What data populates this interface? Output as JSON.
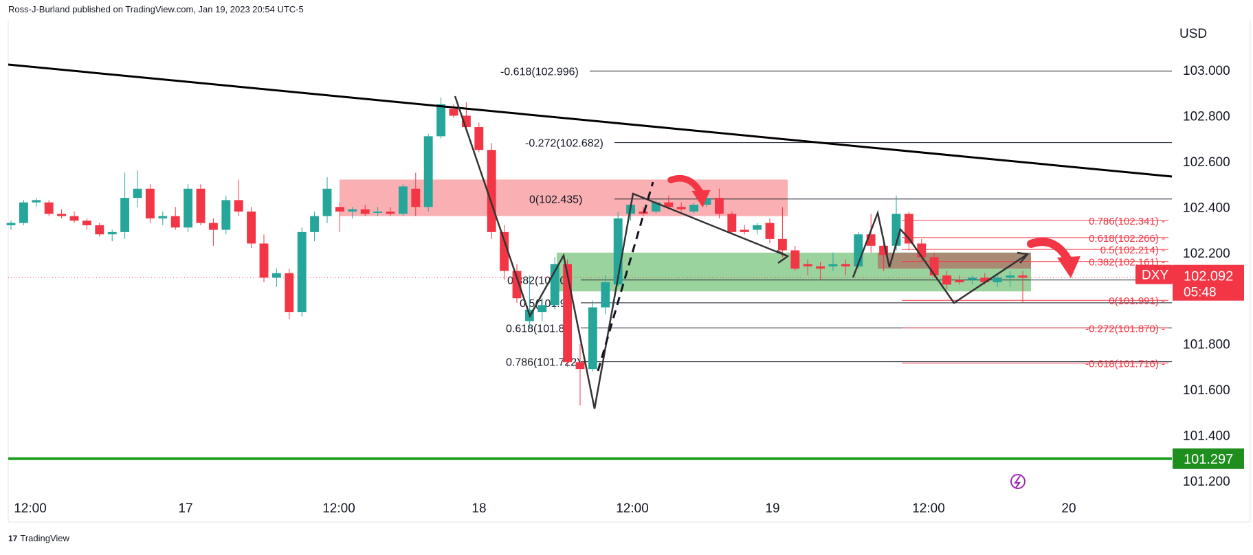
{
  "header": {
    "published": "Ross-J-Burland published on TradingView.com, Jan 19, 2023 20:54 UTC-5"
  },
  "footer": {
    "brand": "TradingView",
    "logo_icon": "tradingview-logo-icon"
  },
  "colors": {
    "up": "#26a69a",
    "down": "#f23645",
    "trend": "#000000",
    "support": "#1e9e1e",
    "red_zone": "#f77c80",
    "green_zone": "#66bb6a"
  },
  "chart_data": {
    "type": "candlestick",
    "symbol": "DXY",
    "ylabel": "USD",
    "ylim": [
      101.15,
      103.1
    ],
    "yticks": [
      "103.000",
      "102.800",
      "102.600",
      "102.400",
      "102.200",
      "101.800",
      "101.600",
      "101.400",
      "101.200"
    ],
    "xticks": [
      "12:00",
      "17",
      "12:00",
      "18",
      "12:00",
      "19",
      "12:00",
      "20"
    ],
    "last_price": {
      "value": "102.092",
      "countdown": "05:48"
    },
    "support_price": "101.297",
    "fib_left": [
      {
        "label": "-0.618(102.996)",
        "price": 102.996
      },
      {
        "label": "-0.272(102.682)",
        "price": 102.682
      },
      {
        "label": "0(102.435)",
        "price": 102.435
      },
      {
        "label": "0.382(102.08",
        "price": 102.08
      },
      {
        "label": "0.5(101.98",
        "price": 101.98
      },
      {
        "label": "0.618(101.87",
        "price": 101.87
      },
      {
        "label": "0.786(101.722)",
        "price": 101.722
      }
    ],
    "fib_right": [
      {
        "label": "0.786(102.341)",
        "price": 102.341
      },
      {
        "label": "0.618(102.266)",
        "price": 102.266
      },
      {
        "label": "0.5(102.214)",
        "price": 102.214
      },
      {
        "label": "0.382(102.161)",
        "price": 102.161
      },
      {
        "label": "0(101.991)",
        "price": 101.991
      },
      {
        "label": "-0.272(101.870)",
        "price": 101.87
      },
      {
        "label": "-0.618(101.716)",
        "price": 101.716
      }
    ],
    "candles": [
      [
        102.32,
        102.34,
        102.3,
        102.33
      ],
      [
        102.33,
        102.43,
        102.32,
        102.42
      ],
      [
        102.42,
        102.44,
        102.4,
        102.43
      ],
      [
        102.42,
        102.43,
        102.36,
        102.37
      ],
      [
        102.37,
        102.39,
        102.35,
        102.36
      ],
      [
        102.36,
        102.38,
        102.33,
        102.34
      ],
      [
        102.34,
        102.35,
        102.3,
        102.32
      ],
      [
        102.32,
        102.33,
        102.27,
        102.28
      ],
      [
        102.28,
        102.3,
        102.25,
        102.29
      ],
      [
        102.29,
        102.55,
        102.26,
        102.44
      ],
      [
        102.44,
        102.56,
        102.4,
        102.48
      ],
      [
        102.48,
        102.5,
        102.33,
        102.35
      ],
      [
        102.35,
        102.38,
        102.32,
        102.36
      ],
      [
        102.36,
        102.4,
        102.3,
        102.31
      ],
      [
        102.31,
        102.5,
        102.29,
        102.48
      ],
      [
        102.48,
        102.5,
        102.32,
        102.33
      ],
      [
        102.33,
        102.35,
        102.23,
        102.3
      ],
      [
        102.3,
        102.45,
        102.28,
        102.43
      ],
      [
        102.43,
        102.52,
        102.36,
        102.38
      ],
      [
        102.38,
        102.4,
        102.22,
        102.24
      ],
      [
        102.24,
        102.28,
        102.07,
        102.09
      ],
      [
        102.09,
        102.13,
        102.05,
        102.11
      ],
      [
        102.11,
        102.13,
        101.91,
        101.94
      ],
      [
        101.94,
        102.31,
        101.92,
        102.29
      ],
      [
        102.29,
        102.38,
        102.25,
        102.36
      ],
      [
        102.36,
        102.53,
        102.33,
        102.48
      ],
      [
        102.4,
        102.42,
        102.29,
        102.38
      ],
      [
        102.38,
        102.4,
        102.35,
        102.39
      ],
      [
        102.39,
        102.41,
        102.36,
        102.37
      ],
      [
        102.38,
        102.4,
        102.36,
        102.38
      ],
      [
        102.38,
        102.4,
        102.36,
        102.37
      ],
      [
        102.37,
        102.5,
        102.36,
        102.49
      ],
      [
        102.48,
        102.55,
        102.36,
        102.4
      ],
      [
        102.4,
        102.72,
        102.38,
        102.71
      ],
      [
        102.71,
        102.88,
        102.7,
        102.85
      ],
      [
        102.83,
        102.85,
        102.79,
        102.8
      ],
      [
        102.8,
        102.86,
        102.73,
        102.75
      ],
      [
        102.75,
        102.77,
        102.64,
        102.65
      ],
      [
        102.65,
        102.68,
        102.26,
        102.29
      ],
      [
        102.29,
        102.32,
        102.08,
        102.12
      ],
      [
        102.12,
        102.15,
        101.98,
        102.0
      ],
      [
        101.9,
        102.1,
        101.87,
        101.95
      ],
      [
        101.94,
        102.0,
        101.9,
        101.97
      ],
      [
        101.97,
        102.18,
        101.95,
        102.15
      ],
      [
        102.15,
        102.17,
        101.7,
        101.72
      ],
      [
        101.72,
        101.8,
        101.53,
        101.69
      ],
      [
        101.69,
        101.99,
        101.68,
        101.96
      ],
      [
        101.96,
        102.1,
        101.93,
        102.07
      ],
      [
        102.06,
        102.38,
        102.05,
        102.35
      ],
      [
        102.37,
        102.42,
        102.34,
        102.41
      ],
      [
        102.38,
        102.4,
        102.36,
        102.37
      ],
      [
        102.38,
        102.43,
        102.37,
        102.42
      ],
      [
        102.42,
        102.45,
        102.39,
        102.4
      ],
      [
        102.4,
        102.42,
        102.38,
        102.39
      ],
      [
        102.38,
        102.42,
        102.37,
        102.41
      ],
      [
        102.41,
        102.46,
        102.4,
        102.44
      ],
      [
        102.44,
        102.48,
        102.35,
        102.37
      ],
      [
        102.37,
        102.38,
        102.28,
        102.29
      ],
      [
        102.3,
        102.32,
        102.28,
        102.29
      ],
      [
        102.3,
        102.33,
        102.28,
        102.32
      ],
      [
        102.33,
        102.35,
        102.24,
        102.26
      ],
      [
        102.26,
        102.4,
        102.18,
        102.21
      ],
      [
        102.21,
        102.23,
        102.12,
        102.13
      ],
      [
        102.15,
        102.17,
        102.1,
        102.14
      ],
      [
        102.14,
        102.16,
        102.08,
        102.13
      ],
      [
        102.14,
        102.2,
        102.12,
        102.15
      ],
      [
        102.15,
        102.17,
        102.1,
        102.14
      ],
      [
        102.14,
        102.29,
        102.13,
        102.28
      ],
      [
        102.28,
        102.37,
        102.2,
        102.23
      ],
      [
        102.23,
        102.26,
        102.12,
        102.19
      ],
      [
        102.23,
        102.45,
        102.21,
        102.37
      ],
      [
        102.37,
        102.38,
        102.21,
        102.24
      ],
      [
        102.24,
        102.26,
        102.16,
        102.18
      ],
      [
        102.18,
        102.2,
        102.09,
        102.1
      ],
      [
        102.1,
        102.12,
        102.04,
        102.06
      ],
      [
        102.08,
        102.1,
        102.06,
        102.07
      ],
      [
        102.08,
        102.1,
        102.06,
        102.09
      ],
      [
        102.09,
        102.11,
        102.06,
        102.07
      ],
      [
        102.07,
        102.1,
        102.05,
        102.09
      ],
      [
        102.09,
        102.12,
        102.05,
        102.1
      ],
      [
        102.1,
        102.12,
        101.98,
        102.09
      ]
    ]
  }
}
